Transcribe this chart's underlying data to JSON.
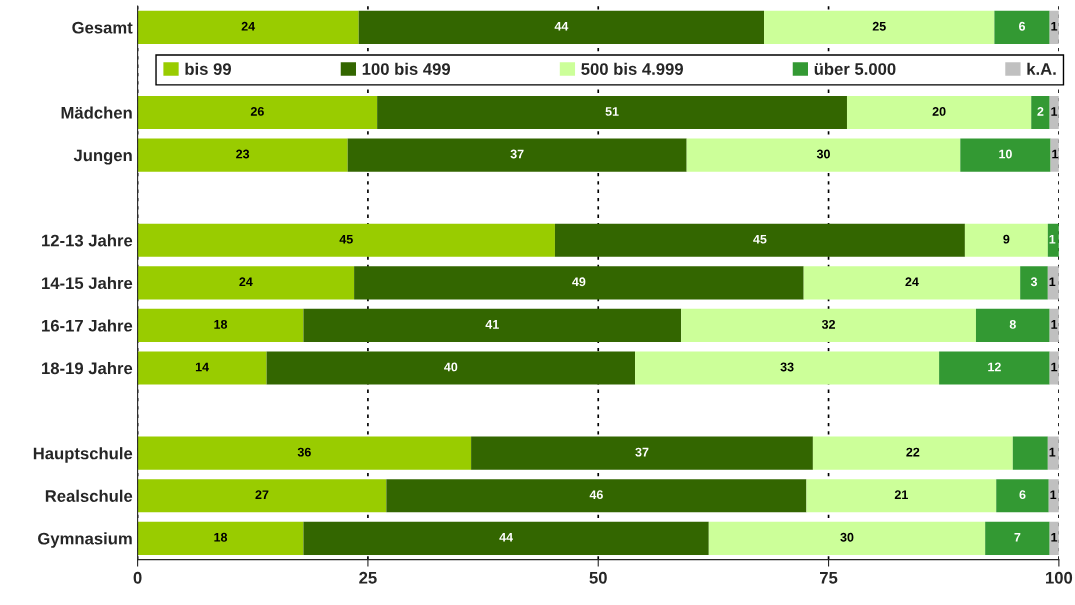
{
  "chart_data": {
    "type": "bar",
    "orientation": "horizontal",
    "stacked": true,
    "categories": [
      "Gesamt",
      null,
      "Mädchen",
      "Jungen",
      null,
      "12-13 Jahre",
      "14-15 Jahre",
      "16-17 Jahre",
      "18-19 Jahre",
      null,
      "Hauptschule",
      "Realschule",
      "Gymnasium"
    ],
    "series": [
      {
        "name": "bis 99",
        "color": "#99cc00",
        "values": [
          24,
          null,
          26,
          22.8,
          null,
          45.3,
          23.5,
          18,
          14,
          null,
          36.2,
          27,
          18
        ],
        "value_labels": [
          "24",
          null,
          "26",
          "23",
          null,
          "45",
          "24",
          "18",
          "14",
          null,
          "36",
          "27",
          "18"
        ]
      },
      {
        "name": "100 bis 499",
        "color": "#336600",
        "values": [
          44,
          null,
          51,
          36.8,
          null,
          44.5,
          48.8,
          41,
          40,
          null,
          37.1,
          45.6,
          44
        ],
        "value_labels": [
          "44",
          null,
          "51",
          "37",
          null,
          "45",
          "49",
          "41",
          "40",
          null,
          "37",
          "46",
          "44"
        ]
      },
      {
        "name": "500 bis 4.999",
        "color": "#ccff99",
        "values": [
          25,
          null,
          20,
          29.7,
          null,
          9,
          23.5,
          32,
          33,
          null,
          21.7,
          20.6,
          30
        ],
        "value_labels": [
          "25",
          null,
          "20",
          "30",
          null,
          "9",
          "24",
          "32",
          "33",
          null,
          "22",
          "21",
          "30"
        ]
      },
      {
        "name": "über 5.000",
        "color": "#339933",
        "values": [
          6,
          null,
          2,
          9.8,
          null,
          1.2,
          3,
          8,
          12,
          null,
          3.8,
          5.7,
          7
        ],
        "value_labels": [
          "6",
          null,
          "2",
          "10",
          null,
          "1",
          "3",
          "8",
          "12",
          null,
          null,
          "6",
          "7"
        ]
      },
      {
        "name": "k.A.",
        "color": "#c0c0c0",
        "values": [
          1,
          null,
          1,
          0.9,
          null,
          null,
          1.2,
          1,
          1,
          null,
          1.2,
          1.1,
          1
        ],
        "value_labels": [
          "1",
          null,
          "1",
          "1",
          null,
          null,
          "1",
          "1",
          "1",
          null,
          "1",
          "1",
          "1"
        ]
      }
    ],
    "xlim": [
      0,
      100
    ],
    "xticks": [
      0,
      25,
      50,
      75,
      100
    ],
    "grid": "x",
    "legend": "top"
  }
}
